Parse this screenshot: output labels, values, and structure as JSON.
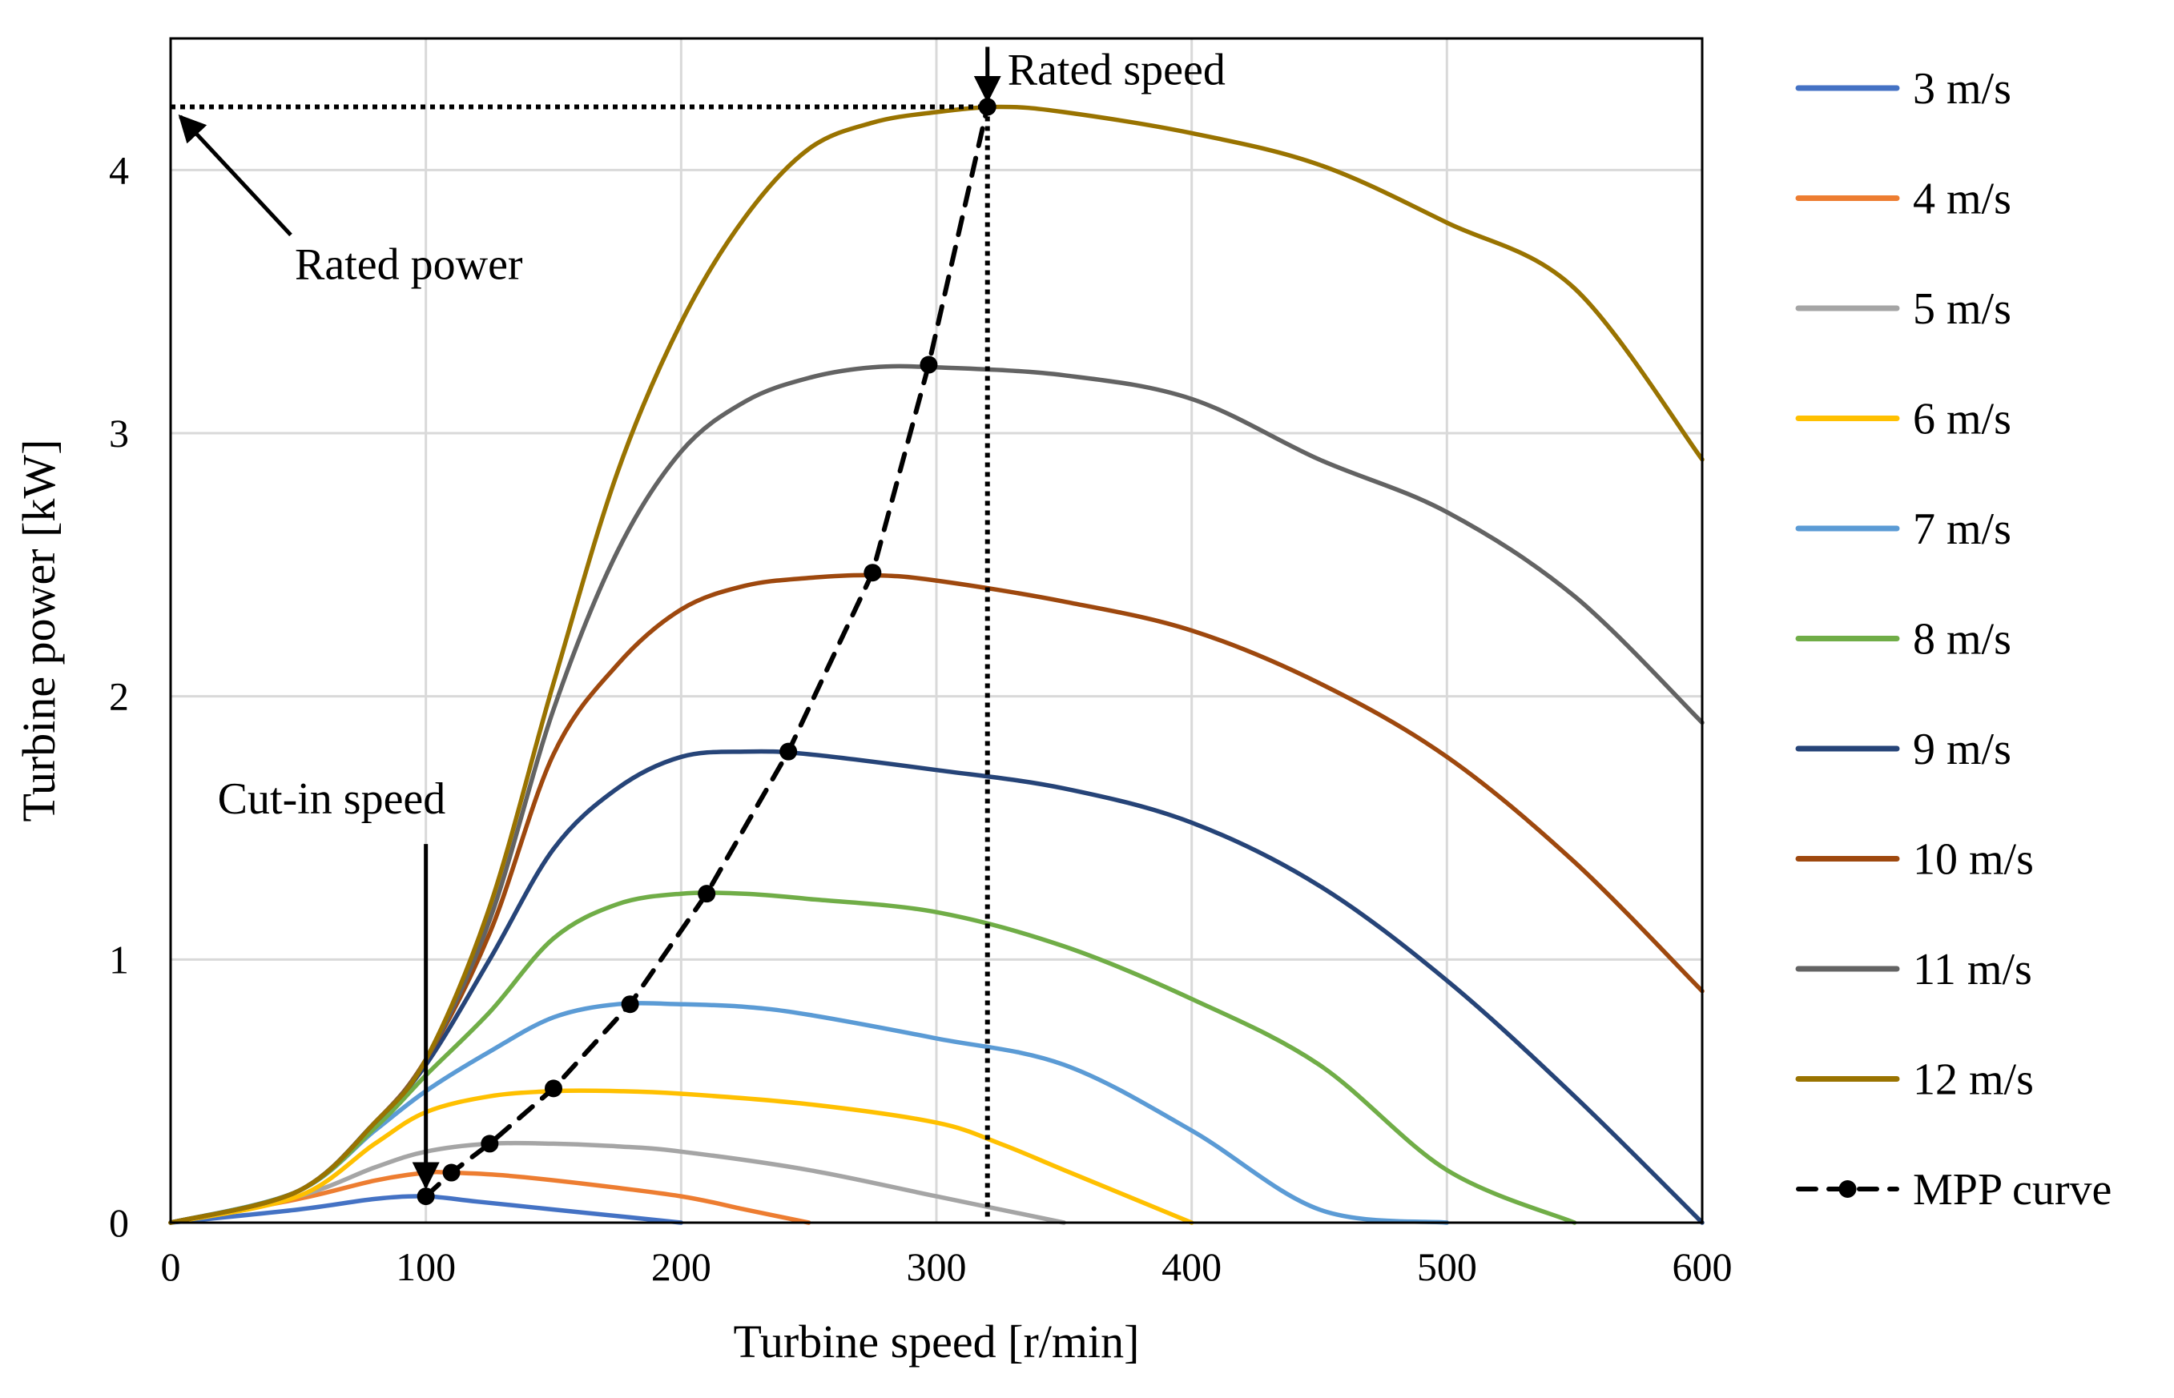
{
  "chart_data": {
    "type": "line",
    "title": "",
    "xlabel": "Turbine speed [r/min]",
    "ylabel": "Turbine power [kW]",
    "xlim": [
      0,
      600
    ],
    "ylim": [
      0,
      4.5
    ],
    "xticks": [
      0,
      100,
      200,
      300,
      400,
      500,
      600
    ],
    "yticks": [
      0,
      1,
      2,
      3,
      4
    ],
    "grid": true,
    "legend_position": "right",
    "series": [
      {
        "name": "3 m/s",
        "color": "#4472c4",
        "x": [
          0,
          50,
          80,
          100,
          120,
          150,
          180,
          200
        ],
        "y": [
          0,
          0.05,
          0.09,
          0.1,
          0.08,
          0.05,
          0.02,
          0
        ]
      },
      {
        "name": "4 m/s",
        "color": "#ed7d31",
        "x": [
          0,
          50,
          80,
          100,
          110,
          130,
          160,
          200,
          225,
          250
        ],
        "y": [
          0,
          0.09,
          0.16,
          0.19,
          0.19,
          0.18,
          0.15,
          0.1,
          0.05,
          0
        ]
      },
      {
        "name": "5 m/s",
        "color": "#a5a5a5",
        "x": [
          0,
          50,
          80,
          100,
          125,
          150,
          175,
          200,
          250,
          300,
          350
        ],
        "y": [
          0,
          0.1,
          0.21,
          0.27,
          0.3,
          0.3,
          0.29,
          0.27,
          0.2,
          0.1,
          0
        ]
      },
      {
        "name": "6 m/s",
        "color": "#ffc000",
        "x": [
          0,
          50,
          80,
          100,
          125,
          150,
          175,
          200,
          250,
          300,
          325,
          350,
          400
        ],
        "y": [
          0,
          0.1,
          0.3,
          0.42,
          0.48,
          0.5,
          0.5,
          0.49,
          0.45,
          0.38,
          0.3,
          0.2,
          0
        ]
      },
      {
        "name": "7 m/s",
        "color": "#5b9bd5",
        "x": [
          0,
          50,
          80,
          100,
          125,
          150,
          175,
          200,
          225,
          250,
          300,
          350,
          400,
          450,
          500
        ],
        "y": [
          0,
          0.12,
          0.35,
          0.5,
          0.65,
          0.78,
          0.83,
          0.83,
          0.82,
          0.79,
          0.7,
          0.6,
          0.35,
          0.05,
          0
        ]
      },
      {
        "name": "8 m/s",
        "color": "#70ad47",
        "x": [
          0,
          50,
          80,
          100,
          125,
          150,
          175,
          200,
          225,
          250,
          300,
          350,
          400,
          450,
          500,
          550
        ],
        "y": [
          0,
          0.12,
          0.36,
          0.56,
          0.8,
          1.08,
          1.21,
          1.25,
          1.25,
          1.23,
          1.18,
          1.05,
          0.85,
          0.6,
          0.2,
          0
        ]
      },
      {
        "name": "9 m/s",
        "color": "#264478",
        "x": [
          0,
          50,
          80,
          100,
          125,
          150,
          175,
          200,
          225,
          250,
          300,
          350,
          400,
          450,
          500,
          550,
          600
        ],
        "y": [
          0,
          0.12,
          0.38,
          0.6,
          1.0,
          1.42,
          1.65,
          1.77,
          1.79,
          1.78,
          1.72,
          1.65,
          1.52,
          1.28,
          0.92,
          0.48,
          0
        ]
      },
      {
        "name": "10 m/s",
        "color": "#9e480e",
        "x": [
          0,
          50,
          80,
          100,
          125,
          150,
          175,
          200,
          225,
          250,
          275,
          300,
          350,
          400,
          450,
          500,
          550,
          600
        ],
        "y": [
          0,
          0.12,
          0.38,
          0.62,
          1.1,
          1.78,
          2.12,
          2.33,
          2.42,
          2.45,
          2.46,
          2.44,
          2.36,
          2.25,
          2.05,
          1.77,
          1.37,
          0.88
        ]
      },
      {
        "name": "11 m/s",
        "color": "#636363",
        "x": [
          0,
          50,
          80,
          100,
          125,
          150,
          175,
          200,
          225,
          250,
          275,
          300,
          350,
          400,
          450,
          500,
          550,
          600
        ],
        "y": [
          0,
          0.12,
          0.38,
          0.62,
          1.15,
          1.95,
          2.55,
          2.93,
          3.12,
          3.21,
          3.25,
          3.25,
          3.22,
          3.13,
          2.9,
          2.7,
          2.38,
          1.9
        ]
      },
      {
        "name": "12 m/s",
        "color": "#997300",
        "x": [
          0,
          50,
          80,
          100,
          125,
          150,
          175,
          200,
          225,
          250,
          275,
          300,
          325,
          350,
          400,
          450,
          500,
          550,
          600
        ],
        "y": [
          0,
          0.12,
          0.38,
          0.62,
          1.2,
          2.05,
          2.85,
          3.42,
          3.82,
          4.08,
          4.18,
          4.22,
          4.24,
          4.22,
          4.14,
          4.02,
          3.8,
          3.55,
          2.9
        ]
      },
      {
        "name": "MPP curve",
        "color": "#000000",
        "dashed": true,
        "markers": true,
        "x": [
          100,
          110,
          125,
          150,
          180,
          210,
          242,
          275,
          297,
          320
        ],
        "y": [
          0.1,
          0.19,
          0.3,
          0.51,
          0.83,
          1.25,
          1.79,
          2.47,
          3.26,
          4.24
        ]
      }
    ],
    "annotations": [
      {
        "text": "Rated speed",
        "x": 320,
        "y": 4.24
      },
      {
        "text": "Rated power",
        "x": 0,
        "y": 4.24
      },
      {
        "text": "Cut-in speed",
        "x": 100,
        "y": 0.1
      }
    ]
  }
}
